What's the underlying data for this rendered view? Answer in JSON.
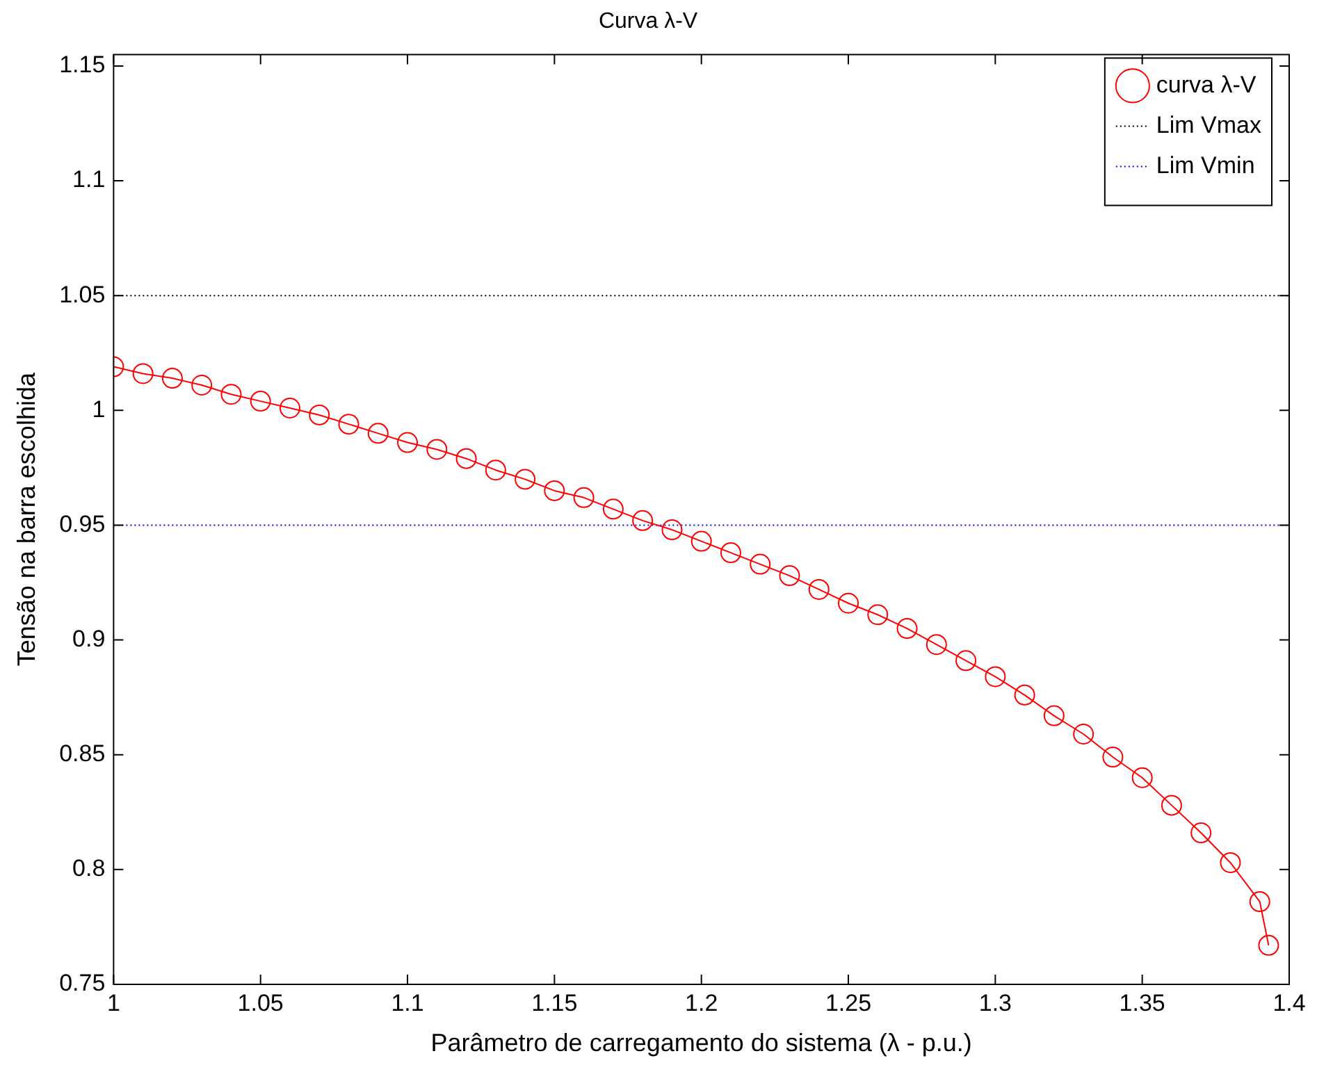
{
  "chart_data": {
    "type": "line",
    "title": "Curva λ-V",
    "xlabel": "Parâmetro de carregamento do sistema (λ - p.u.)",
    "ylabel": "Tensão na barra escolhida",
    "xlim": [
      1,
      1.4
    ],
    "xticks": [
      1,
      1.05,
      1.1,
      1.15,
      1.2,
      1.25,
      1.3,
      1.35,
      1.4
    ],
    "ylim": [
      0.75,
      1.155
    ],
    "yticks": [
      0.75,
      0.8,
      0.85,
      0.9,
      0.95,
      1,
      1.05,
      1.1,
      1.15
    ],
    "grid": false,
    "legend": "top right",
    "series": [
      {
        "name": "curva λ-V",
        "color": "#ff0000",
        "marker": "circle",
        "line_style": "solid",
        "x": [
          1,
          1.01,
          1.02,
          1.03,
          1.04,
          1.05,
          1.06,
          1.07,
          1.08,
          1.09,
          1.1,
          1.11,
          1.12,
          1.13,
          1.14,
          1.15,
          1.16,
          1.17,
          1.18,
          1.19,
          1.2,
          1.21,
          1.22,
          1.23,
          1.24,
          1.25,
          1.26,
          1.27,
          1.28,
          1.29,
          1.3,
          1.31,
          1.32,
          1.33,
          1.34,
          1.35,
          1.36,
          1.37,
          1.38,
          1.39,
          1.393
        ],
        "values": [
          1.019,
          1.016,
          1.014,
          1.011,
          1.007,
          1.004,
          1.001,
          0.998,
          0.994,
          0.99,
          0.986,
          0.983,
          0.979,
          0.974,
          0.97,
          0.965,
          0.962,
          0.957,
          0.952,
          0.948,
          0.943,
          0.938,
          0.933,
          0.928,
          0.922,
          0.916,
          0.911,
          0.905,
          0.898,
          0.891,
          0.884,
          0.876,
          0.867,
          0.859,
          0.849,
          0.84,
          0.828,
          0.816,
          0.803,
          0.786,
          0.767
        ]
      },
      {
        "name": "Lim Vmax",
        "color": "#000000",
        "marker": "none",
        "line_style": "dotted",
        "x": [
          1,
          1.4
        ],
        "values": [
          1.05,
          1.05
        ]
      },
      {
        "name": "Lim Vmin",
        "color": "#0000ff",
        "marker": "none",
        "line_style": "dotted",
        "x": [
          1,
          1.4
        ],
        "values": [
          0.95,
          0.95
        ]
      }
    ]
  }
}
